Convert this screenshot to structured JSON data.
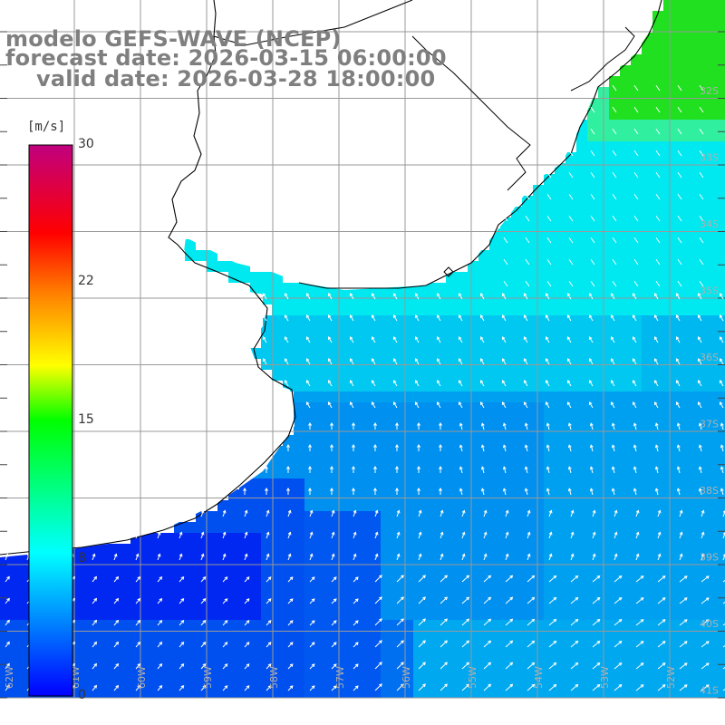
{
  "title": {
    "line1": "modelo GEFS-WAVE (NCEP)",
    "line2": "forecast date: 2026-03-15 06:00:00",
    "line3": "valid date: 2026-03-28 18:00:00"
  },
  "colorbar": {
    "unit": "[m/s]",
    "ticks": [
      "30",
      "22",
      "15",
      "8",
      "0"
    ],
    "range": [
      0,
      30
    ],
    "colors": [
      "#0000ff",
      "#00aaff",
      "#00ffff",
      "#00ff00",
      "#ffff00",
      "#ff8000",
      "#ff0000",
      "#c0007f"
    ]
  },
  "map": {
    "land_color": "#ffffff",
    "grid_color": "#999999",
    "coast_color": "#000000",
    "arrow_color": "#ffffff",
    "lat_labels": [
      "32S",
      "33S",
      "34S",
      "35S",
      "36S",
      "37S",
      "38S",
      "39S",
      "40S",
      "41S"
    ],
    "lon_labels": [
      "62W",
      "61W",
      "60W",
      "59W",
      "58W",
      "57W",
      "56W",
      "55W",
      "54W",
      "53W",
      "52W"
    ]
  }
}
